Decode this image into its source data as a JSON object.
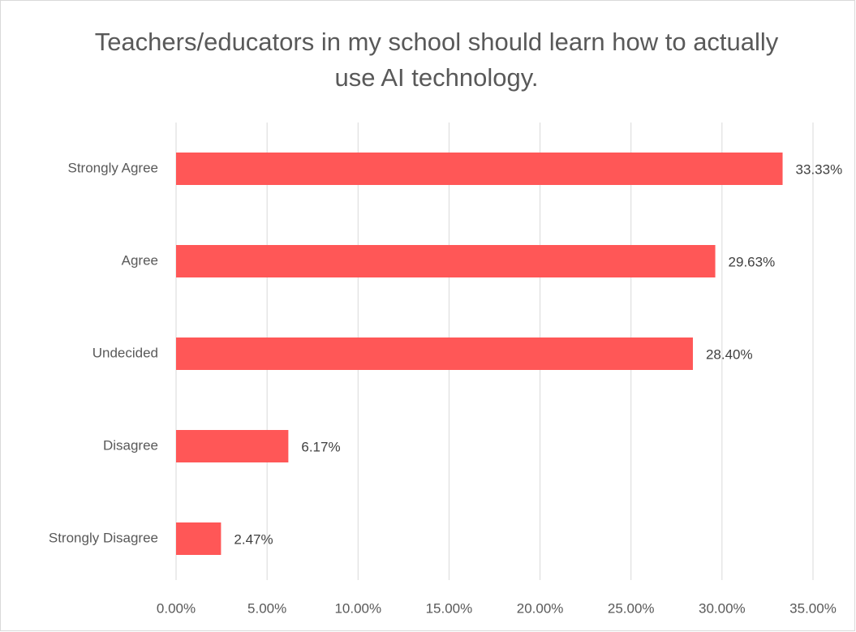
{
  "chart_data": {
    "type": "bar",
    "orientation": "horizontal",
    "title": "Teachers/educators in my school should learn how to actually use AI technology.",
    "categories": [
      "Strongly Agree",
      "Agree",
      "Undecided",
      "Disagree",
      "Strongly Disagree"
    ],
    "values": [
      33.33,
      29.63,
      28.4,
      6.17,
      2.47
    ],
    "value_labels": [
      "33.33%",
      "29.63%",
      "28.40%",
      "6.17%",
      "2.47%"
    ],
    "color": "#ff5757",
    "xlim": [
      0,
      35
    ],
    "xticks": [
      {
        "value": 0,
        "label": "0.00%"
      },
      {
        "value": 5,
        "label": "5.00%"
      },
      {
        "value": 10,
        "label": "10.00%"
      },
      {
        "value": 15,
        "label": "15.00%"
      },
      {
        "value": 20,
        "label": "20.00%"
      },
      {
        "value": 25,
        "label": "25.00%"
      },
      {
        "value": 30,
        "label": "30.00%"
      },
      {
        "value": 35,
        "label": "35.00%"
      }
    ],
    "grid": true
  }
}
